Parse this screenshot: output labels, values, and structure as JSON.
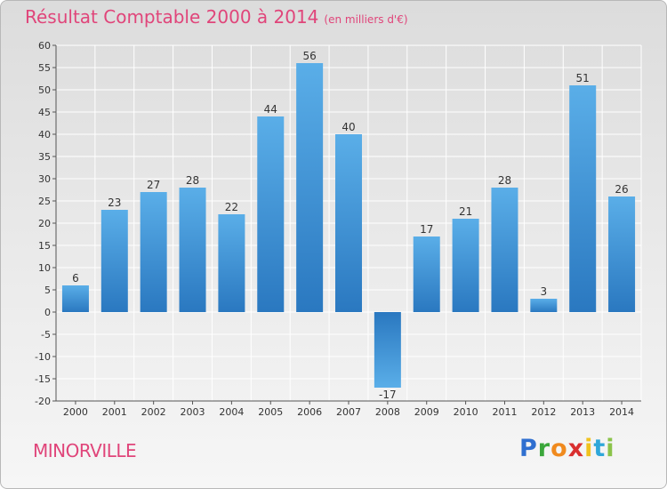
{
  "header": {
    "title": "Résultat Comptable 2000 à 2014",
    "subtitle": "(en milliers d'€)"
  },
  "footer": {
    "location": "MINORVILLE",
    "logo": {
      "text": "Proxiti"
    }
  },
  "colors": {
    "title": "#e0457a",
    "bar_top": "#5aaee8",
    "bar_bottom": "#2a78c0",
    "grid": "#ffffff",
    "axis": "#555555"
  },
  "chart_data": {
    "type": "bar",
    "title": "Résultat Comptable 2000 à 2014",
    "subtitle": "(en milliers d'€)",
    "xlabel": "",
    "ylabel": "",
    "categories": [
      "2000",
      "2001",
      "2002",
      "2003",
      "2004",
      "2005",
      "2006",
      "2007",
      "2008",
      "2009",
      "2010",
      "2011",
      "2012",
      "2013",
      "2014"
    ],
    "values": [
      6,
      23,
      27,
      28,
      22,
      44,
      56,
      40,
      -17,
      17,
      21,
      28,
      3,
      51,
      26
    ],
    "ylim": [
      -20,
      60
    ],
    "yticks": [
      -20,
      -15,
      -10,
      -5,
      0,
      5,
      10,
      15,
      20,
      25,
      30,
      35,
      40,
      45,
      50,
      55,
      60
    ],
    "grid": true,
    "legend": "none"
  }
}
